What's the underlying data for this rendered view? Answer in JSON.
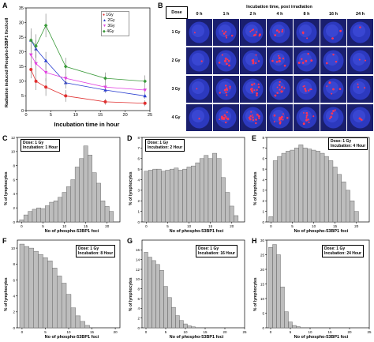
{
  "panels": {
    "A": {
      "label": "A",
      "xlabel": "Incubation time in hour",
      "ylabel": "Radiation induced Phospho-53BP1 foci/cell",
      "legend": [
        "1Gy",
        "2Gy",
        "3Gy",
        "4Gy"
      ]
    },
    "B": {
      "label": "B",
      "dose_header": "Dose",
      "incubation_header": "Incubation time, post irradiation",
      "times": [
        "0 h",
        "1 h",
        "2 h",
        "4 h",
        "8 h",
        "16 h",
        "24 h"
      ],
      "doses": [
        "1 Gy",
        "2 Gy",
        "3 Gy",
        "4 Gy"
      ]
    },
    "C": {
      "label": "C",
      "annotation": [
        "Dose: 1 Gy",
        "Incubation: 1 Hour"
      ],
      "xlabel": "No of phospho-53BP1 foci",
      "ylabel": "% of lymphocytes"
    },
    "D": {
      "label": "D",
      "annotation": [
        "Dose: 1 Gy",
        "Incubation: 2 Hour"
      ],
      "xlabel": "No of phospho-53BP1 foci",
      "ylabel": "% of lymphocytes"
    },
    "E": {
      "label": "E",
      "annotation": [
        "Dose: 1 Gy",
        "Incubation: 4 Hour"
      ],
      "xlabel": "No of phospho-53BP1 foci",
      "ylabel": "% of lymphocytes"
    },
    "F": {
      "label": "F",
      "annotation": [
        "Dose: 1 Gy",
        "Incubation: 8 Hour"
      ],
      "xlabel": "No of phospho-53BP1 foci",
      "ylabel": "% of lymphocytes"
    },
    "G": {
      "label": "G",
      "annotation": [
        "Dose: 1 Gy",
        "Incubation: 16 Hour"
      ],
      "xlabel": "No of phospho-53BP1 foci",
      "ylabel": "% of lymphocytes"
    },
    "H": {
      "label": "H",
      "annotation": [
        "Dose: 1 Gy",
        "Incubation: 24 Hour"
      ],
      "xlabel": "No of phospho-53BP1 foci",
      "ylabel": "% of lymphocytes"
    }
  },
  "colors": {
    "1Gy": "#e03030",
    "2Gy": "#2a3fd0",
    "3Gy": "#e040e0",
    "4Gy": "#3a9a3a",
    "bar": "#bdbdbd",
    "cell_bg": "#1a1f6e",
    "focus": "#ff3355"
  },
  "chart_data": [
    {
      "type": "scatter",
      "panel": "A",
      "xlim": [
        0,
        25
      ],
      "ylim": [
        0,
        35
      ],
      "xticks": [
        0,
        5,
        10,
        15,
        20,
        25
      ],
      "yticks": [
        0,
        5,
        10,
        15,
        20,
        25,
        30,
        35
      ],
      "x": [
        1,
        2,
        4,
        8,
        16,
        24
      ],
      "series": [
        {
          "name": "1Gy",
          "marker": "circle",
          "values": [
            14,
            10,
            8,
            5,
            3,
            2.5
          ],
          "errors": [
            3,
            3,
            3,
            2,
            1,
            1
          ]
        },
        {
          "name": "2Gy",
          "marker": "triangle",
          "values": [
            24,
            21,
            17,
            9.5,
            7,
            5
          ],
          "errors": [
            3,
            3,
            3,
            2,
            1,
            1
          ]
        },
        {
          "name": "3Gy",
          "marker": "triangle-down",
          "values": [
            19,
            16,
            13,
            11,
            8,
            7
          ],
          "errors": [
            3,
            3,
            3,
            2,
            1,
            1
          ]
        },
        {
          "name": "4Gy",
          "marker": "diamond",
          "values": [
            24,
            22,
            29,
            15,
            11,
            10
          ],
          "errors": [
            4,
            4,
            4,
            3,
            2,
            2
          ]
        }
      ]
    },
    {
      "type": "bar",
      "panel": "C",
      "xlim": [
        -1,
        23
      ],
      "ylim": [
        0,
        12
      ],
      "xticks": [
        0,
        5,
        10,
        15,
        20
      ],
      "yticks": [
        0,
        2,
        4,
        6,
        8,
        10,
        12
      ],
      "values": [
        0.3,
        1.0,
        1.5,
        1.8,
        2.0,
        1.9,
        2.3,
        2.8,
        3.0,
        3.5,
        4.2,
        5.0,
        6.0,
        7.8,
        9.0,
        10.8,
        9.5,
        7.0,
        5.5,
        3.0,
        2.2,
        1.5
      ]
    },
    {
      "type": "bar",
      "panel": "D",
      "xlim": [
        -1,
        23
      ],
      "ylim": [
        0,
        8
      ],
      "xticks": [
        0,
        5,
        10,
        15,
        20
      ],
      "yticks": [
        0,
        1,
        2,
        3,
        4,
        5,
        6,
        7,
        8
      ],
      "values": [
        4.8,
        4.9,
        5.0,
        5.0,
        4.8,
        4.9,
        5.0,
        5.1,
        4.9,
        5.0,
        5.2,
        5.3,
        5.6,
        6.0,
        6.3,
        6.0,
        6.5,
        6.0,
        4.2,
        2.8,
        1.5,
        0.6
      ]
    },
    {
      "type": "bar",
      "panel": "E",
      "xlim": [
        -1,
        23
      ],
      "ylim": [
        0,
        8
      ],
      "xticks": [
        0,
        5,
        10,
        15,
        20
      ],
      "yticks": [
        0,
        1,
        2,
        3,
        4,
        5,
        6,
        7,
        8
      ],
      "values": [
        0.5,
        5.8,
        6.2,
        6.5,
        6.7,
        6.8,
        7.0,
        7.3,
        7.0,
        6.9,
        6.8,
        6.7,
        6.5,
        6.2,
        5.8,
        5.2,
        4.5,
        3.8,
        3.0,
        2.0,
        1.0
      ]
    },
    {
      "type": "bar",
      "panel": "F",
      "xlim": [
        -1,
        21
      ],
      "ylim": [
        0,
        11
      ],
      "xticks": [
        0,
        5,
        10,
        15,
        20
      ],
      "yticks": [
        0,
        2,
        4,
        6,
        8,
        10
      ],
      "values": [
        10.5,
        10.2,
        10.0,
        9.6,
        9.2,
        8.8,
        8.4,
        7.5,
        6.5,
        5.6,
        4.2,
        2.5,
        1.5,
        0.8,
        0.3
      ]
    },
    {
      "type": "bar",
      "panel": "G",
      "xlim": [
        -1,
        25
      ],
      "ylim": [
        0,
        18
      ],
      "xticks": [
        0,
        5,
        10,
        15,
        20,
        25
      ],
      "yticks": [
        0,
        2,
        4,
        6,
        8,
        10,
        12,
        14,
        16
      ],
      "values": [
        15.5,
        14.5,
        13.8,
        13.0,
        11.8,
        8.5,
        6.2,
        4.2,
        2.5,
        1.5,
        0.8,
        0.4,
        0.2
      ]
    },
    {
      "type": "bar",
      "panel": "H",
      "xlim": [
        -1,
        25
      ],
      "ylim": [
        0,
        30
      ],
      "xticks": [
        0,
        5,
        10,
        15,
        20,
        25
      ],
      "yticks": [
        0,
        5,
        10,
        15,
        20,
        25,
        30
      ],
      "values": [
        27.5,
        28.5,
        25.0,
        14.0,
        5.5,
        2.0,
        0.8,
        0.4
      ]
    }
  ]
}
